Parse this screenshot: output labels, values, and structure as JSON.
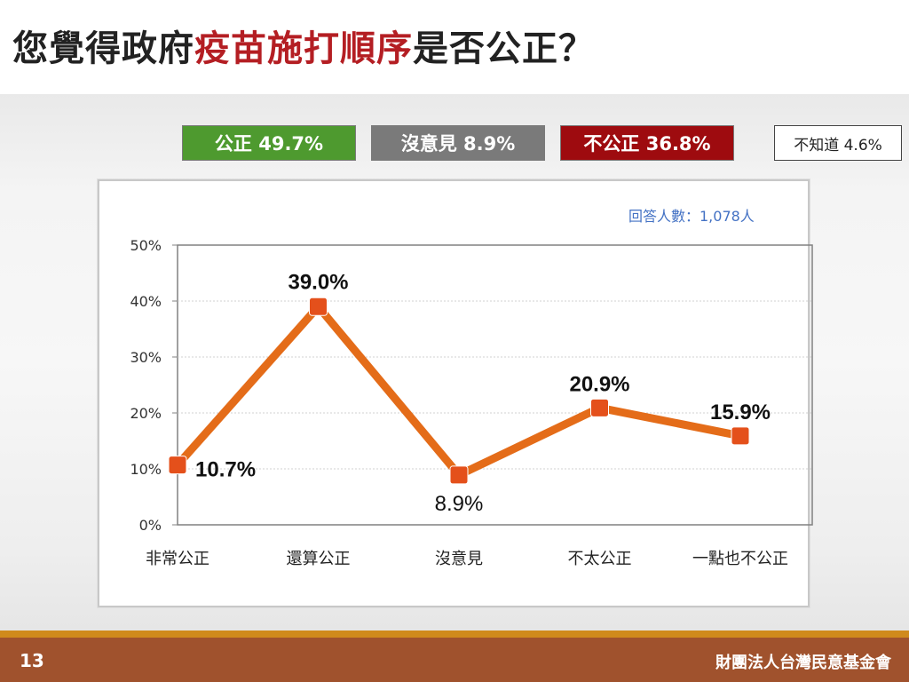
{
  "title": {
    "prefix": "您覺得政府",
    "highlight": "疫苗施打順序",
    "suffix": "是否公正？"
  },
  "summary": {
    "fair": "公正 49.7%",
    "no_opinion": "沒意見 8.9%",
    "unfair": "不公正 36.8%",
    "dont_know": "不知道 4.6%"
  },
  "respondents": "回答人數：1,078人",
  "colors": {
    "line": "#e46c19",
    "marker": "#e4501b",
    "fair": "#4e9a2f",
    "no_opinion": "#7a7a7a",
    "unfair": "#9e0b0f",
    "title_highlight": "#b41e23",
    "respondents": "#4472c4",
    "footer": "#a0522d"
  },
  "chart_data": {
    "type": "line",
    "categories": [
      "非常公正",
      "還算公正",
      "沒意見",
      "不太公正",
      "一點也不公正"
    ],
    "values": [
      10.7,
      39.0,
      8.9,
      20.9,
      15.9
    ],
    "data_labels": [
      "10.7%",
      "39.0%",
      "8.9%",
      "20.9%",
      "15.9%"
    ],
    "yticks": [
      "0%",
      "10%",
      "20%",
      "30%",
      "40%",
      "50%"
    ],
    "ylim": [
      0,
      50
    ],
    "grid": true
  },
  "footer": {
    "page_number": "13",
    "organization": "財團法人台灣民意基金會"
  }
}
